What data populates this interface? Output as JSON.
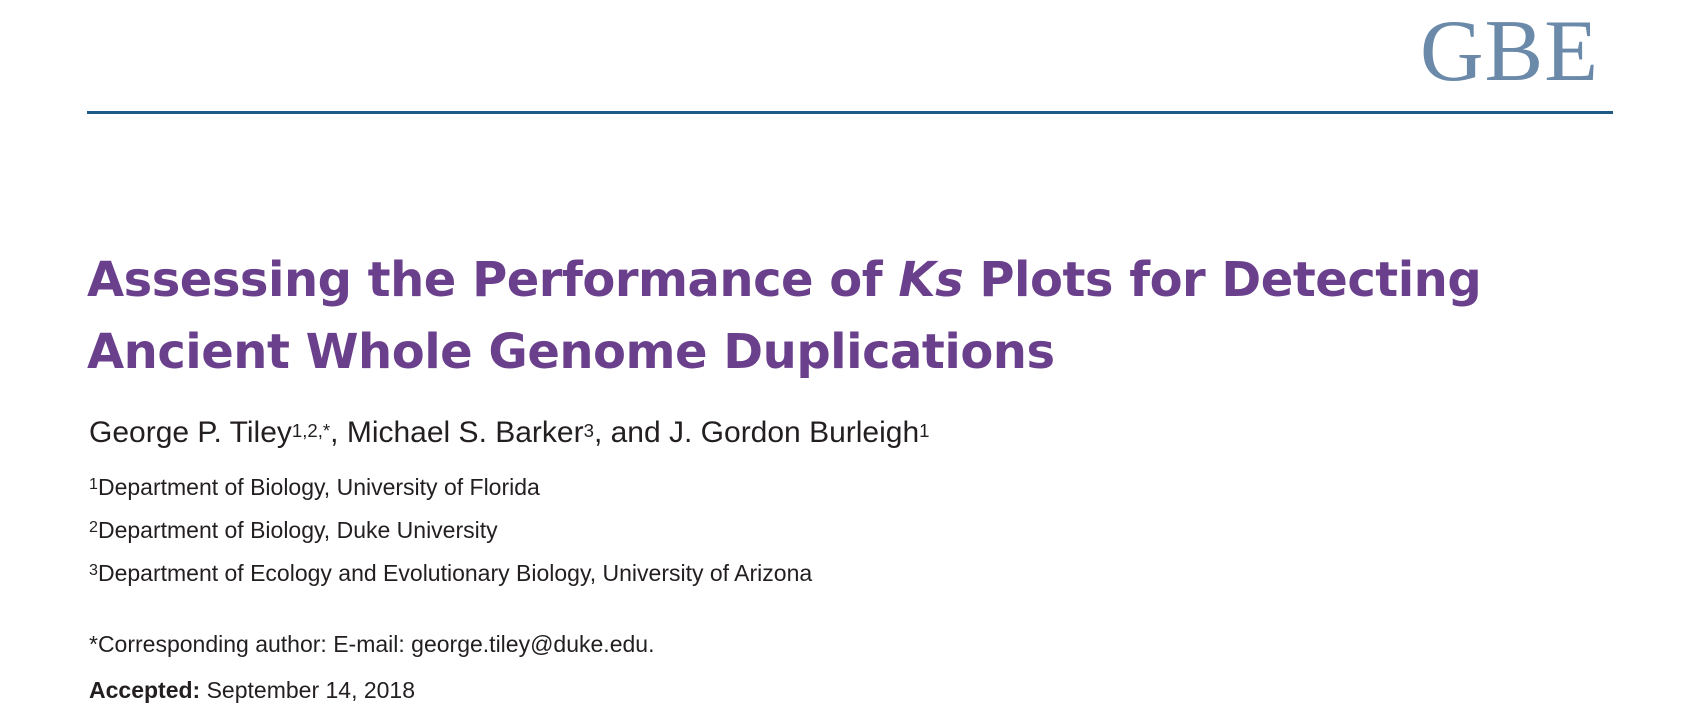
{
  "journal": {
    "logo_text": "GBE",
    "logo_color": "#6b8aaa",
    "rule_color": "#1f5a86"
  },
  "article": {
    "title_part1": "Assessing the Performance of ",
    "title_italic": "Ks",
    "title_part2": " Plots for Detecting Ancient Whole Genome Duplications",
    "title_color": "#6a3f8c"
  },
  "authors": [
    {
      "name": "George P. Tiley",
      "sup": "1,2,",
      "star": "*",
      "sep": ", "
    },
    {
      "name": "Michael S. Barker",
      "sup": "3",
      "sep": ", and "
    },
    {
      "name": "J. Gordon Burleigh",
      "sup": "1"
    }
  ],
  "affiliations": [
    {
      "num": "1",
      "text": "Department of Biology, University of Florida"
    },
    {
      "num": "2",
      "text": "Department of Biology, Duke University"
    },
    {
      "num": "3",
      "text": "Department of Ecology and Evolutionary Biology, University of Arizona"
    }
  ],
  "correspondence": {
    "label": "*Corresponding author: E-mail: ",
    "email": "george.tiley@duke.edu",
    "trailing": "."
  },
  "accepted": {
    "label": "Accepted:",
    "date": " September 14, 2018"
  }
}
